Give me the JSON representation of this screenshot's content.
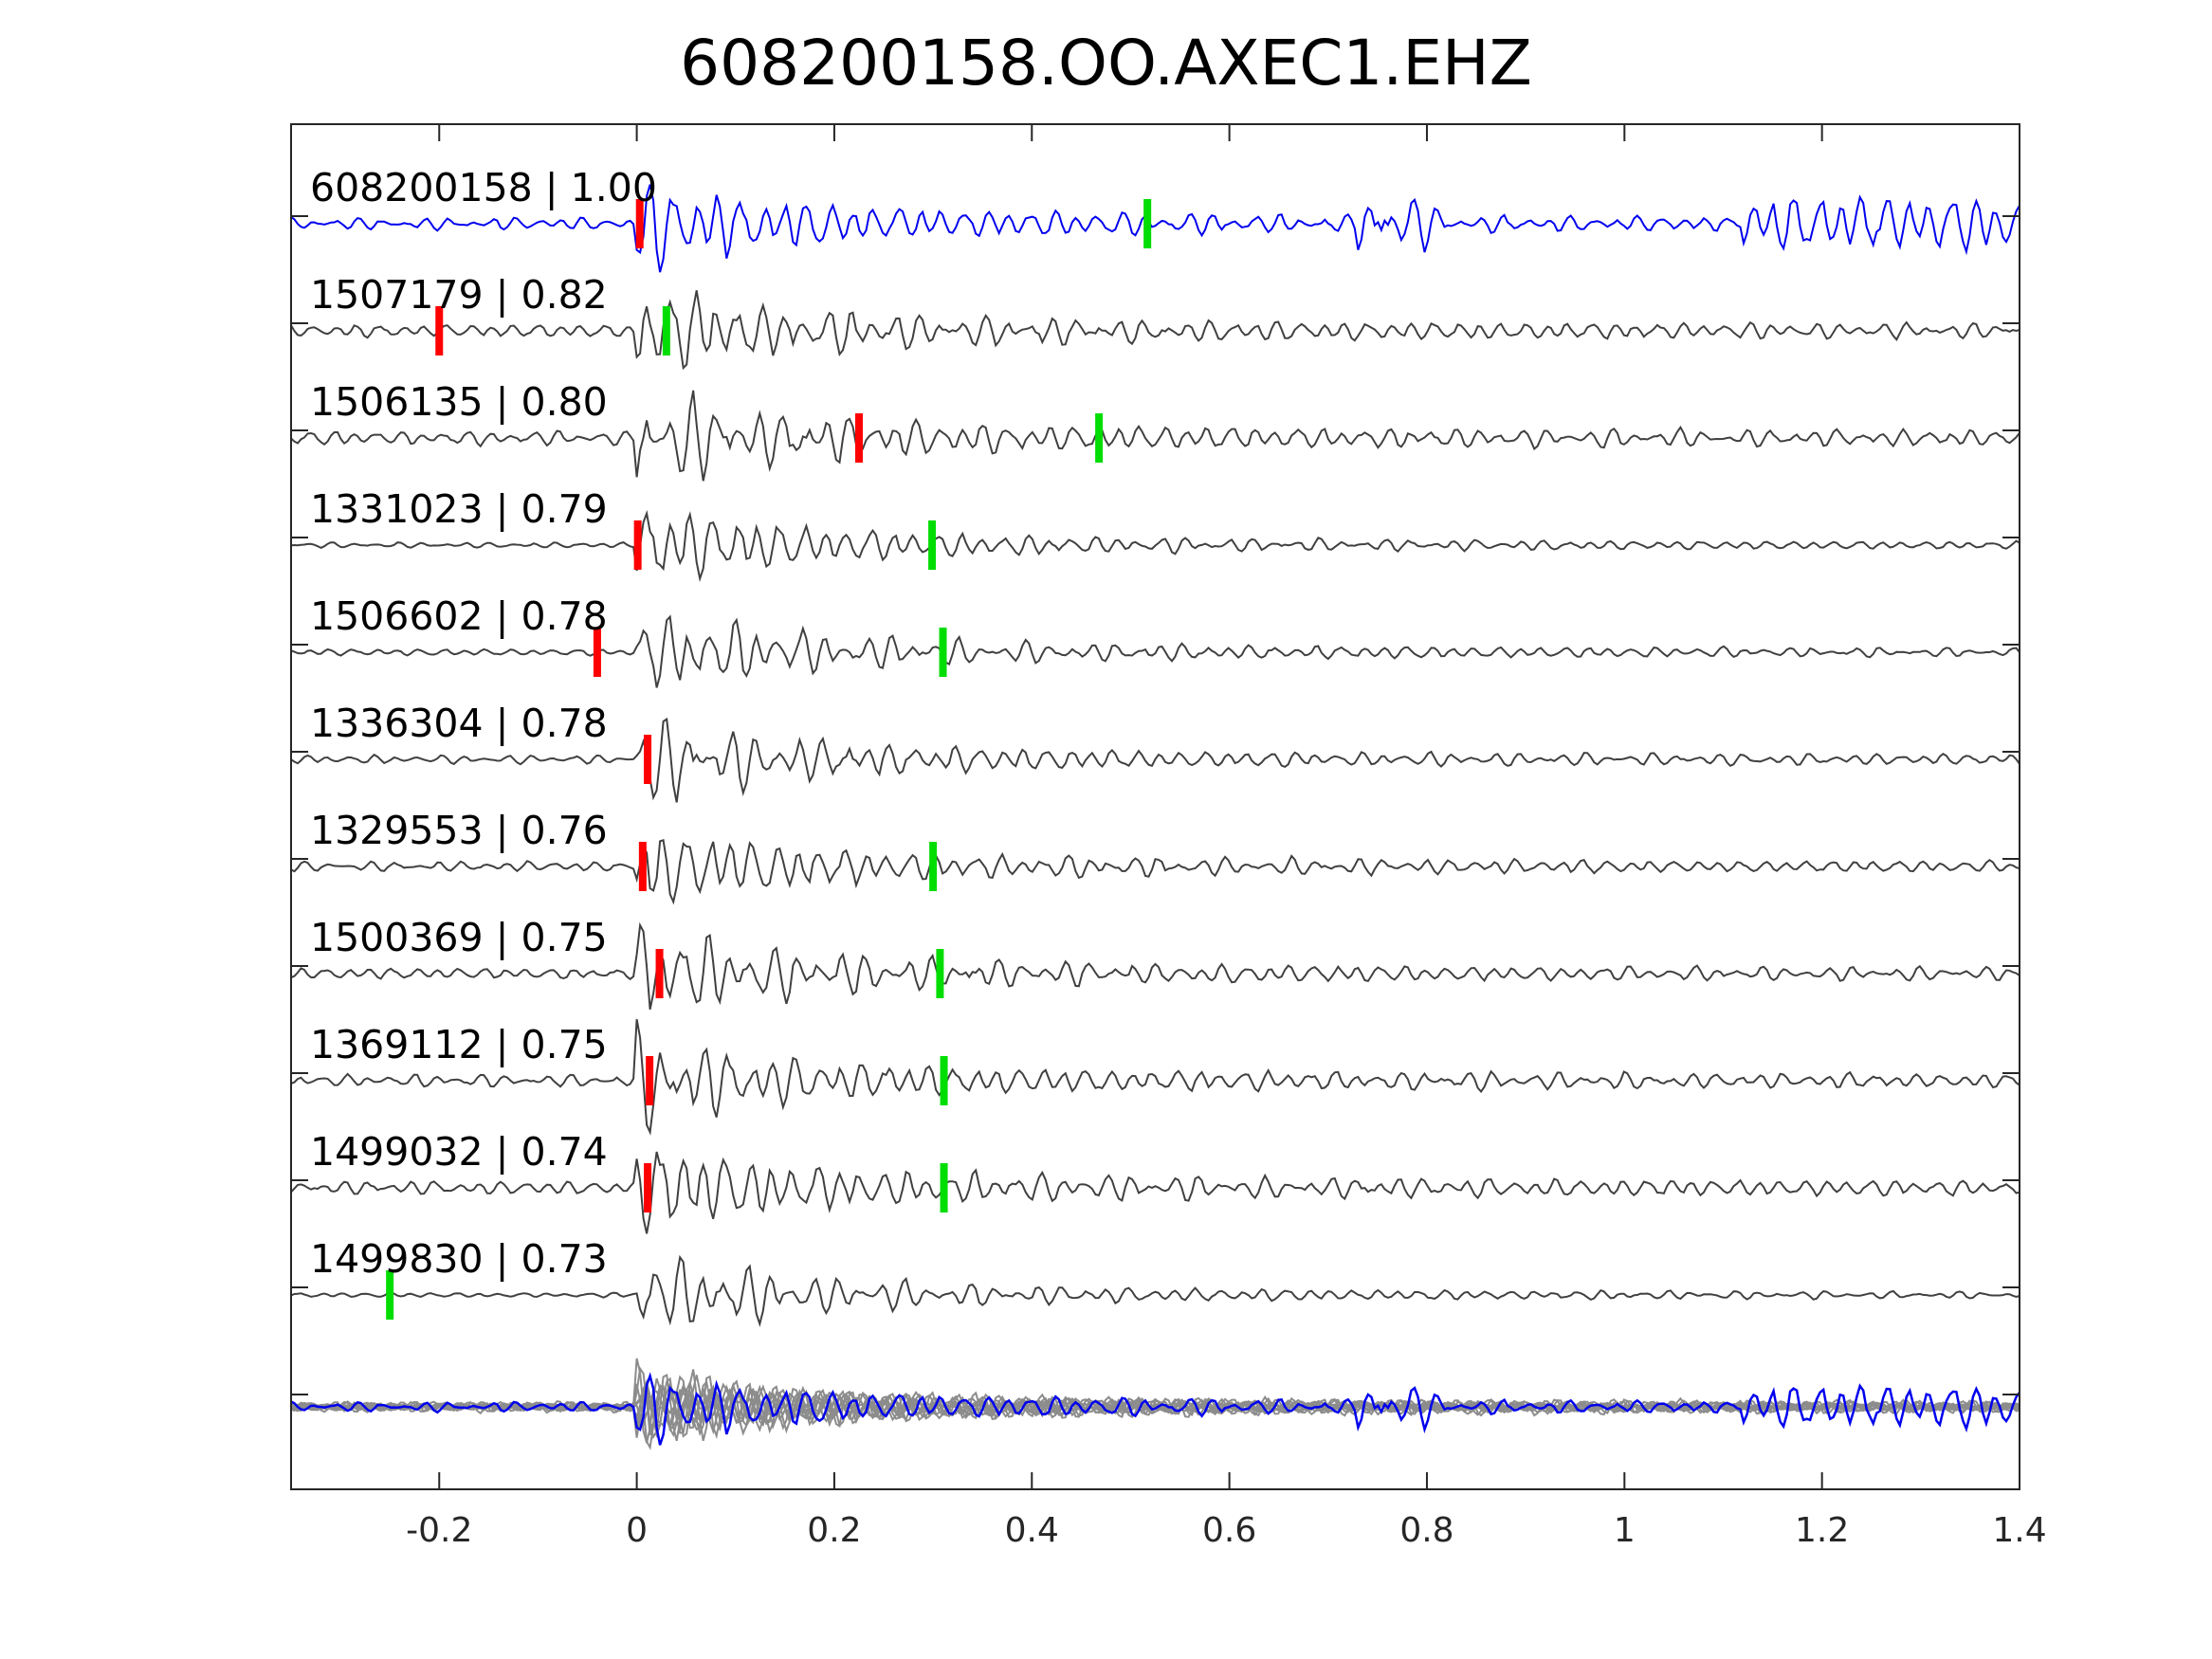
{
  "title": "608200158.OO.AXEC1.EHZ",
  "chart_data": {
    "type": "line",
    "title": "608200158.OO.AXEC1.EHZ",
    "xlabel": "",
    "ylabel": "",
    "xlim": [
      -0.35,
      1.4
    ],
    "xticks": [
      -0.2,
      0,
      0.2,
      0.4,
      0.6,
      0.8,
      1,
      1.2,
      1.4
    ],
    "xtick_labels": [
      "-0.2",
      "0",
      "0.2",
      "0.4",
      "0.6",
      "0.8",
      "1",
      "1.2",
      "1.4"
    ],
    "grid": false,
    "template_color": "#0000ee",
    "trace_color": "#404040",
    "stack_color": "#8c8c8c",
    "p_pick_color": "#ff0000",
    "s_pick_color": "#00dd00",
    "traces": [
      {
        "id": "608200158",
        "cc": "1.00",
        "label": "608200158 | 1.00",
        "p_pick": 0.003,
        "s_pick": 0.517,
        "template": true
      },
      {
        "id": "1507179",
        "cc": "0.82",
        "label": "1507179 | 0.82",
        "p_pick": -0.2,
        "s_pick": 0.03
      },
      {
        "id": "1506135",
        "cc": "0.80",
        "label": "1506135 | 0.80",
        "p_pick": 0.225,
        "s_pick": 0.468
      },
      {
        "id": "1331023",
        "cc": "0.79",
        "label": "1331023 | 0.79",
        "p_pick": 0.001,
        "s_pick": 0.299
      },
      {
        "id": "1506602",
        "cc": "0.78",
        "label": "1506602 | 0.78",
        "p_pick": -0.04,
        "s_pick": 0.31
      },
      {
        "id": "1336304",
        "cc": "0.78",
        "label": "1336304 | 0.78",
        "p_pick": 0.011,
        "s_pick": null
      },
      {
        "id": "1329553",
        "cc": "0.76",
        "label": "1329553 | 0.76",
        "p_pick": 0.006,
        "s_pick": 0.3
      },
      {
        "id": "1500369",
        "cc": "0.75",
        "label": "1500369 | 0.75",
        "p_pick": 0.023,
        "s_pick": 0.307
      },
      {
        "id": "1369112",
        "cc": "0.75",
        "label": "1369112 | 0.75",
        "p_pick": 0.013,
        "s_pick": 0.311
      },
      {
        "id": "1499032",
        "cc": "0.74",
        "label": "1499032 | 0.74",
        "p_pick": 0.011,
        "s_pick": 0.311
      },
      {
        "id": "1499830",
        "cc": "0.73",
        "label": "1499830 | 0.73",
        "p_pick": null,
        "s_pick": -0.25
      }
    ]
  }
}
